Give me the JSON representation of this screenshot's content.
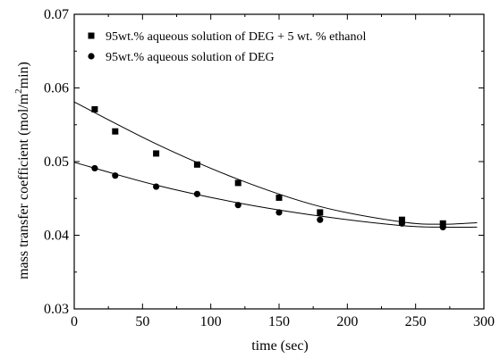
{
  "chart_data": {
    "type": "scatter",
    "xlabel": "time (sec)",
    "ylabel_main": "mass transfer coefficient (mol/m",
    "ylabel_sup": "2",
    "ylabel_tail": "min)",
    "xlim": [
      0,
      300
    ],
    "ylim": [
      0.03,
      0.07
    ],
    "x_ticks": [
      "0",
      "50",
      "100",
      "150",
      "200",
      "250",
      "300"
    ],
    "y_ticks": [
      "0.03",
      "0.04",
      "0.05",
      "0.06",
      "0.07"
    ],
    "legend_position": "top-left",
    "grid": false,
    "series": [
      {
        "name": "95wt.% aqueous solution of DEG + 5 wt. % ethanol",
        "marker": "square",
        "x": [
          15,
          30,
          60,
          90,
          120,
          150,
          180,
          240,
          270
        ],
        "y": [
          0.0571,
          0.0541,
          0.0511,
          0.0496,
          0.0471,
          0.0451,
          0.0431,
          0.0421,
          0.0416
        ],
        "fit_curve": [
          [
            0,
            0.0581
          ],
          [
            60,
            0.0524
          ],
          [
            120,
            0.0476
          ],
          [
            180,
            0.0439
          ],
          [
            240,
            0.0418
          ],
          [
            270,
            0.0415
          ],
          [
            295,
            0.0417
          ]
        ]
      },
      {
        "name": "95wt.% aqueous solution of DEG",
        "marker": "circle",
        "x": [
          15,
          30,
          60,
          90,
          120,
          150,
          180,
          240,
          270
        ],
        "y": [
          0.0491,
          0.0481,
          0.0466,
          0.0456,
          0.0441,
          0.0431,
          0.0421,
          0.0416,
          0.0411
        ],
        "fit_curve": [
          [
            0,
            0.0499
          ],
          [
            60,
            0.0468
          ],
          [
            120,
            0.0444
          ],
          [
            180,
            0.0426
          ],
          [
            240,
            0.0413
          ],
          [
            270,
            0.0411
          ],
          [
            295,
            0.0411
          ]
        ]
      }
    ]
  }
}
